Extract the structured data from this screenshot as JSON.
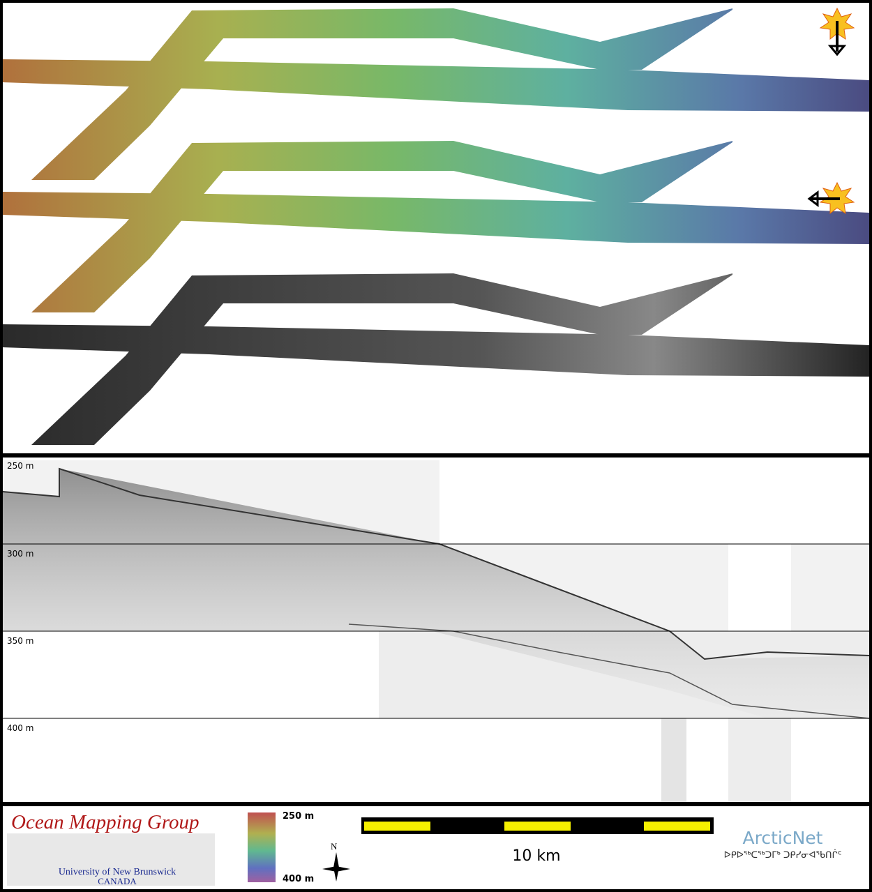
{
  "profile": {
    "depth_labels": [
      "250 m",
      "300 m",
      "350 m",
      "400 m"
    ]
  },
  "legend": {
    "top": "250 m",
    "bottom": "400 m"
  },
  "compass": {
    "label": "N"
  },
  "scale_bar": {
    "label": "10 km"
  },
  "logo": {
    "title": "Ocean Mapping Group",
    "university": "University of New Brunswick",
    "country": "CANADA"
  },
  "arcticnet": {
    "name": "ArcticNet",
    "syllabics": "ᐅᑭᐅᖅᑕᖅᑐᒥᒃ ᑐᑭᓯᓂᐊᖃᑎᒌᑦ"
  }
}
